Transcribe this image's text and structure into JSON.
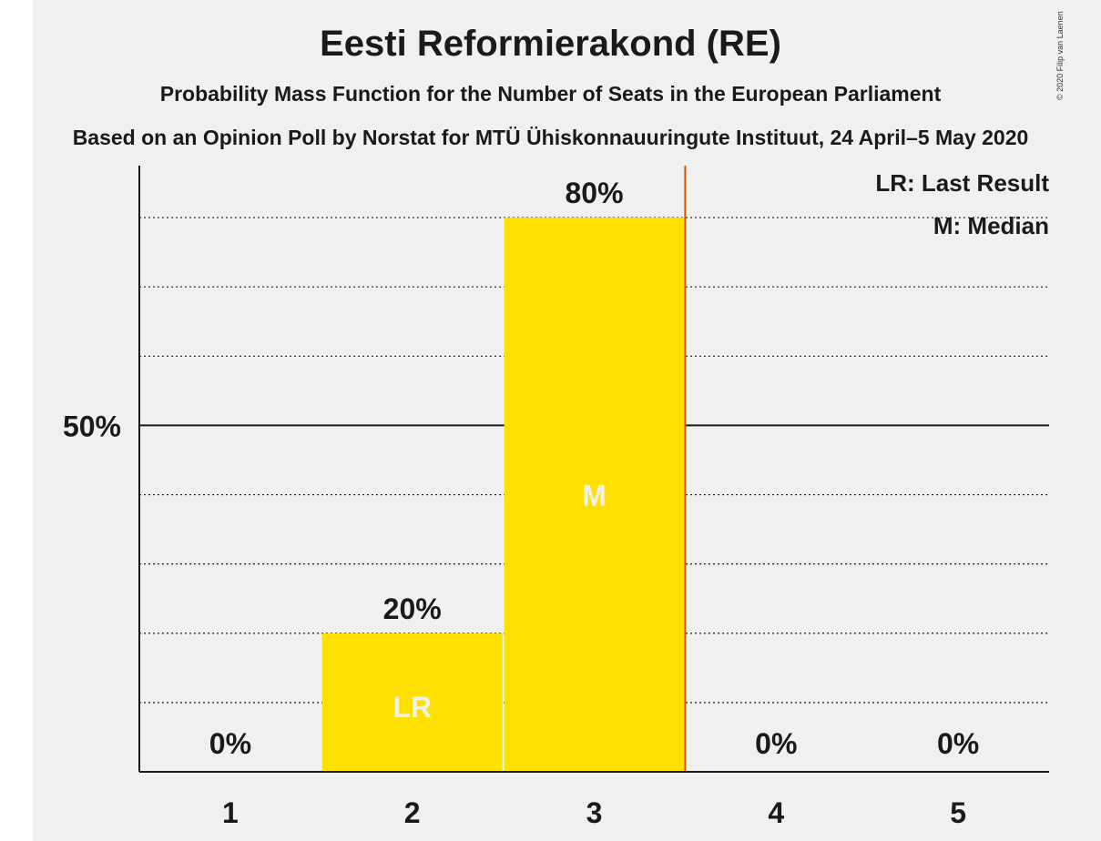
{
  "header": {
    "title": "Eesti Reformierakond (RE)",
    "subtitle": "Probability Mass Function for the Number of Seats in the European Parliament",
    "source": "Based on an Opinion Poll by Norstat for MTÜ Ühiskonnauuringute Instituut, 24 April–5 May 2020",
    "copyright": "© 2020 Filip van Laenen"
  },
  "legend": {
    "last_result": "LR: Last Result",
    "median": "M: Median"
  },
  "chart_data": {
    "type": "bar",
    "categories": [
      "1",
      "2",
      "3",
      "4",
      "5"
    ],
    "values": [
      0,
      20,
      80,
      0,
      0
    ],
    "value_labels": [
      "0%",
      "20%",
      "80%",
      "0%",
      "0%"
    ],
    "bar_markers": [
      "",
      "LR",
      "M",
      "",
      ""
    ],
    "ylim": [
      0,
      87.5
    ],
    "yticks": [
      50
    ],
    "ytick_labels": [
      "50%"
    ],
    "minor_gridlines": [
      10,
      20,
      30,
      40,
      60,
      70,
      80
    ],
    "last_result_line_after_category": "3",
    "legend_placement": "top-right",
    "colors": {
      "bar": "#ffe000",
      "bar_label_inside": "#f0f0f0",
      "text": "#1a1a1a",
      "last_result_line": "#d35400",
      "background": "#f0f0f0"
    }
  }
}
